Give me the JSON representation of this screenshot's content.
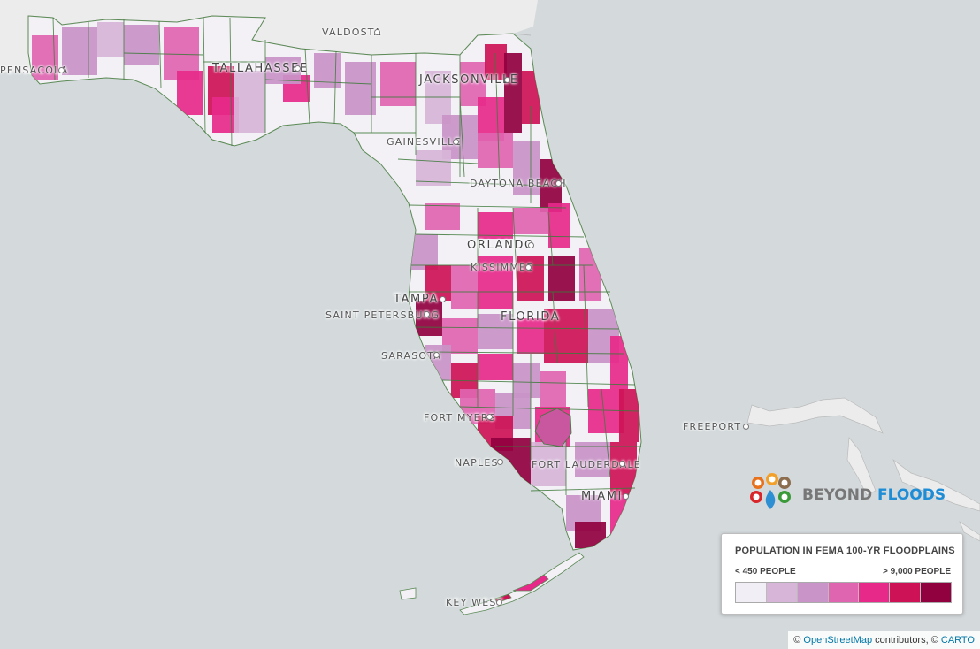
{
  "cities": [
    {
      "name": "VALDOSTA",
      "size": "small"
    },
    {
      "name": "PENSACOLA",
      "size": "small"
    },
    {
      "name": "TALLAHASSEE",
      "size": "big"
    },
    {
      "name": "JACKSONVILLE",
      "size": "big"
    },
    {
      "name": "GAINESVILLE",
      "size": "small"
    },
    {
      "name": "DAYTONA BEACH",
      "size": "small"
    },
    {
      "name": "ORLANDO",
      "size": "big"
    },
    {
      "name": "KISSIMMEE",
      "size": "small"
    },
    {
      "name": "TAMPA",
      "size": "big"
    },
    {
      "name": "SAINT PETERSBURG",
      "size": "small"
    },
    {
      "name": "FLORIDA",
      "size": "big"
    },
    {
      "name": "SARASOTA",
      "size": "small"
    },
    {
      "name": "FORT MYERS",
      "size": "small"
    },
    {
      "name": "NAPLES",
      "size": "small"
    },
    {
      "name": "FORT LAUDERDALE",
      "size": "small"
    },
    {
      "name": "MIAMI",
      "size": "big"
    },
    {
      "name": "FREEPORT",
      "size": "small"
    },
    {
      "name": "KEY WEST",
      "size": "small"
    }
  ],
  "legend": {
    "title": "POPULATION IN FEMA 100-YR FLOODPLAINS",
    "min_label": "< 450 PEOPLE",
    "max_label": "> 9,000 PEOPLE",
    "colors": [
      "#f1eef6",
      "#d7b5d8",
      "#c994c7",
      "#df65b0",
      "#e7298a",
      "#ce1256",
      "#91003f"
    ]
  },
  "logo": {
    "word1": "BEYOND",
    "word2": "FLOODS",
    "color1": "#777777",
    "color2": "#1f8dd6"
  },
  "attribution": {
    "prefix": "©",
    "osm": "OpenStreetMap",
    "middle": "contributors, ©",
    "carto": "CARTO"
  },
  "colors": {
    "water": "#d4dadc",
    "land": "#f3f3f3",
    "county_border": "#3d7a3a"
  }
}
